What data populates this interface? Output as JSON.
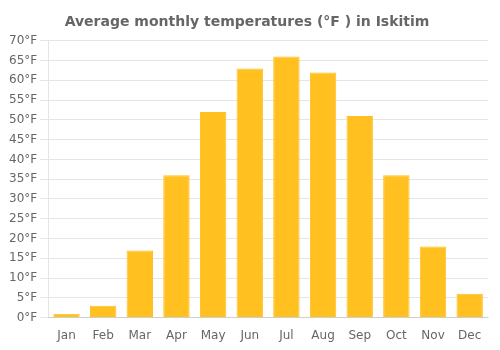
{
  "chart_data": {
    "type": "bar",
    "title": "Average monthly temperatures (°F ) in Iskitim",
    "categories": [
      "Jan",
      "Feb",
      "Mar",
      "Apr",
      "May",
      "Jun",
      "Jul",
      "Aug",
      "Sep",
      "Oct",
      "Nov",
      "Dec"
    ],
    "values": [
      1,
      3,
      17,
      36,
      52,
      63,
      66,
      62,
      51,
      36,
      18,
      6
    ],
    "color": "#FFC020",
    "ylim": [
      0,
      70
    ],
    "yticks": [
      {
        "value": 0,
        "label": "0°F"
      },
      {
        "value": 5,
        "label": "5°F"
      },
      {
        "value": 10,
        "label": "10°F"
      },
      {
        "value": 15,
        "label": "15°F"
      },
      {
        "value": 20,
        "label": "20°F"
      },
      {
        "value": 25,
        "label": "25°F"
      },
      {
        "value": 30,
        "label": "30°F"
      },
      {
        "value": 35,
        "label": "35°F"
      },
      {
        "value": 40,
        "label": "40°F"
      },
      {
        "value": 45,
        "label": "45°F"
      },
      {
        "value": 50,
        "label": "50°F"
      },
      {
        "value": 55,
        "label": "55°F"
      },
      {
        "value": 60,
        "label": "60°F"
      },
      {
        "value": 65,
        "label": "65°F"
      },
      {
        "value": 70,
        "label": "70°F"
      }
    ],
    "grid": true
  }
}
